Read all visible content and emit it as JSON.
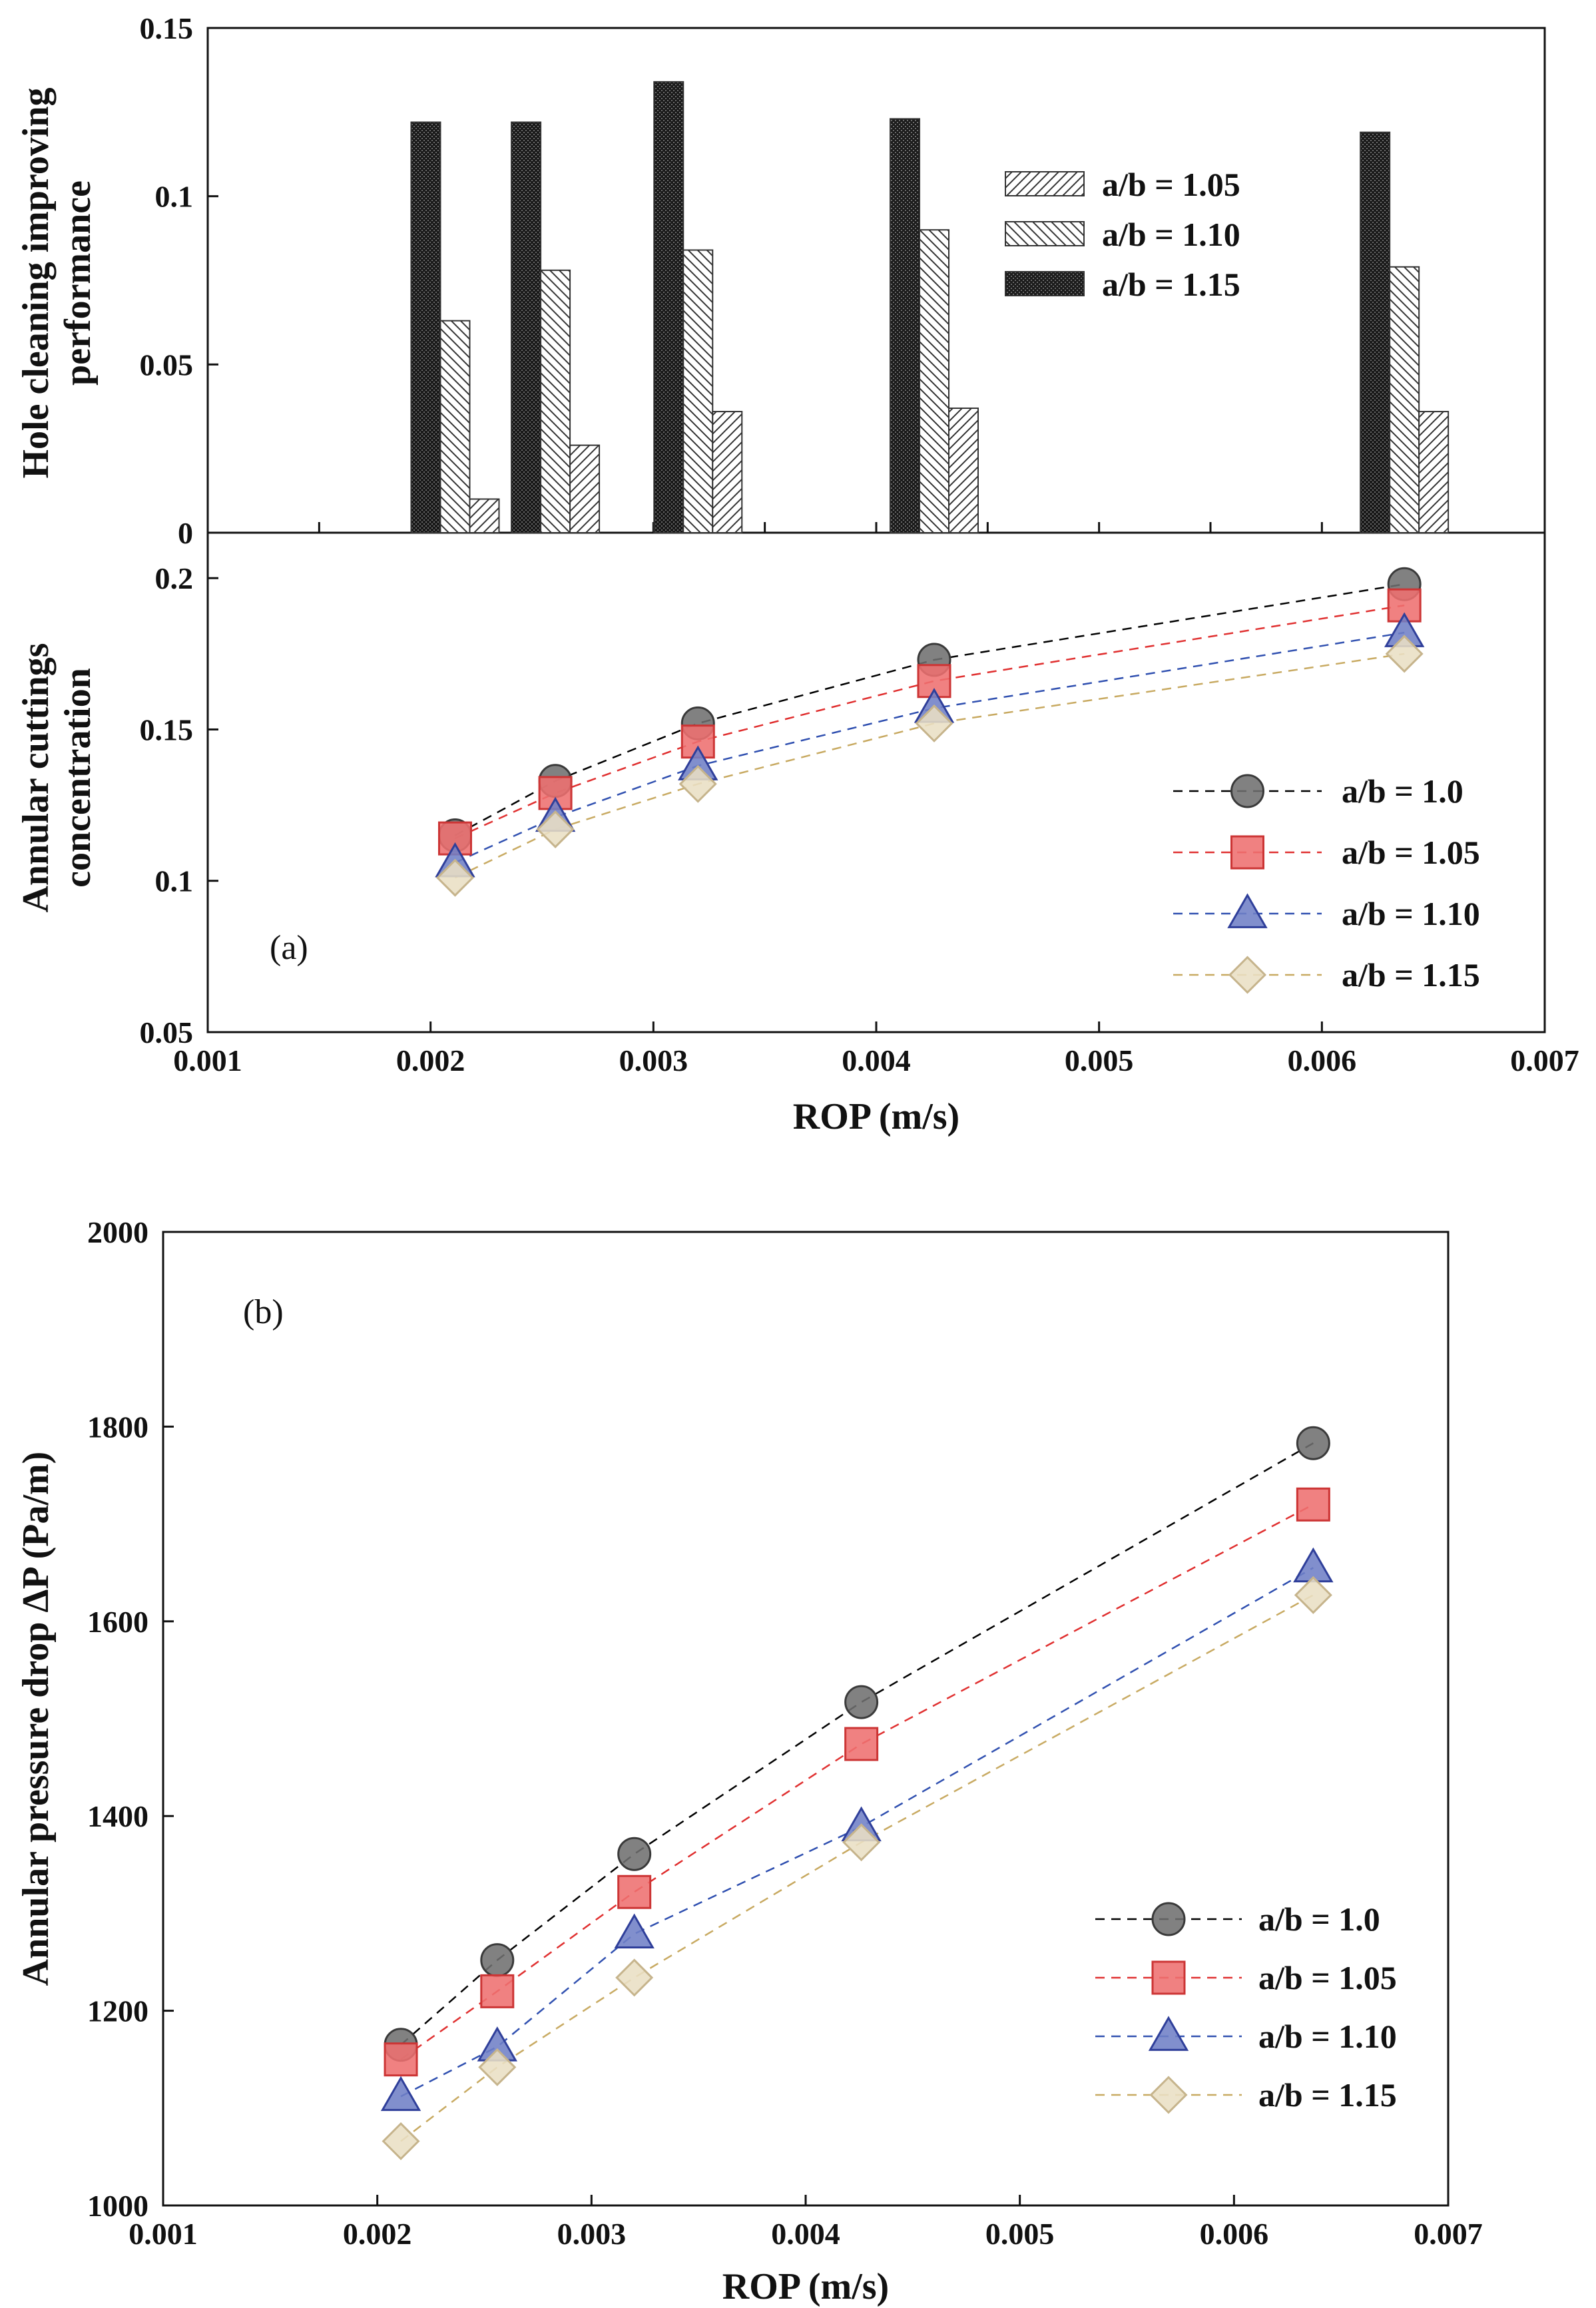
{
  "chart_data": [
    {
      "id": "bar",
      "type": "bar",
      "panel": "(a) top",
      "ylabel_line1": "Hole cleaning improving",
      "ylabel_line2": "performance",
      "ylim": [
        0,
        0.15
      ],
      "yticks": [
        "0",
        "0.05",
        "0.1",
        "0.15"
      ],
      "ytick_values": [
        0,
        0.05,
        0.1,
        0.15
      ],
      "x": [
        0.00211,
        0.00256,
        0.0032,
        0.00426,
        0.00637
      ],
      "series": [
        {
          "name": "a/b = 1.05",
          "pattern": "hatch-fwd",
          "values": [
            0.01,
            0.026,
            0.036,
            0.037,
            0.036
          ]
        },
        {
          "name": "a/b = 1.10",
          "pattern": "hatch-back",
          "values": [
            0.063,
            0.078,
            0.084,
            0.09,
            0.079
          ]
        },
        {
          "name": "a/b = 1.15",
          "pattern": "dark",
          "values": [
            0.122,
            0.122,
            0.134,
            0.123,
            0.119
          ]
        }
      ]
    },
    {
      "id": "conc",
      "type": "line",
      "panel": "(a) bottom",
      "label": "(a)",
      "ylabel_line1": "Annular cuttings",
      "ylabel_line2": "concentration",
      "xlabel": "ROP (m/s)",
      "xlim": [
        0.001,
        0.007
      ],
      "xticks": [
        "0.001",
        "0.002",
        "0.003",
        "0.004",
        "0.005",
        "0.006",
        "0.007"
      ],
      "xtick_values": [
        0.001,
        0.002,
        0.003,
        0.004,
        0.005,
        0.006,
        0.007
      ],
      "ylim": [
        0.05,
        0.215
      ],
      "yticks": [
        "0.05",
        "0.1",
        "0.15",
        "0.2"
      ],
      "ytick_values": [
        0.05,
        0.1,
        0.15,
        0.2
      ],
      "x": [
        0.00211,
        0.00256,
        0.0032,
        0.00426,
        0.00637
      ],
      "series": [
        {
          "name": "a/b = 1.0",
          "marker": "circle",
          "line_color": "#000000",
          "fill": "#707070",
          "stroke": "#3a3a3a",
          "values": [
            0.115,
            0.133,
            0.152,
            0.173,
            0.198
          ]
        },
        {
          "name": "a/b = 1.05",
          "marker": "square",
          "line_color": "#e03030",
          "fill": "#ee6f6f",
          "stroke": "#cc3535",
          "values": [
            0.114,
            0.129,
            0.146,
            0.166,
            0.191
          ]
        },
        {
          "name": "a/b = 1.10",
          "marker": "triangle",
          "line_color": "#3050b0",
          "fill": "#6f7fc6",
          "stroke": "#2f3f9a",
          "values": [
            0.106,
            0.121,
            0.138,
            0.157,
            0.182
          ]
        },
        {
          "name": "a/b = 1.15",
          "marker": "diamond",
          "line_color": "#c8aa62",
          "fill": "#e9dfc4",
          "stroke": "#c6b48c",
          "values": [
            0.101,
            0.117,
            0.132,
            0.152,
            0.175
          ]
        }
      ]
    },
    {
      "id": "dp",
      "type": "line",
      "panel": "(b)",
      "label": "(b)",
      "ylabel": "Annular pressure drop ΔP (Pa/m)",
      "xlabel": "ROP (m/s)",
      "xlim": [
        0.001,
        0.007
      ],
      "xticks": [
        "0.001",
        "0.002",
        "0.003",
        "0.004",
        "0.005",
        "0.006",
        "0.007"
      ],
      "xtick_values": [
        0.001,
        0.002,
        0.003,
        0.004,
        0.005,
        0.006,
        0.007
      ],
      "ylim": [
        1000,
        2000
      ],
      "yticks": [
        "1000",
        "1200",
        "1400",
        "1600",
        "1800",
        "2000"
      ],
      "ytick_values": [
        1000,
        1200,
        1400,
        1600,
        1800,
        2000
      ],
      "x": [
        0.00211,
        0.00256,
        0.0032,
        0.00426,
        0.00637
      ],
      "series": [
        {
          "name": "a/b = 1.0",
          "marker": "circle",
          "line_color": "#000000",
          "fill": "#707070",
          "stroke": "#3a3a3a",
          "values": [
            1165,
            1252,
            1361,
            1517,
            1783
          ]
        },
        {
          "name": "a/b = 1.05",
          "marker": "square",
          "line_color": "#e03030",
          "fill": "#ee6f6f",
          "stroke": "#cc3535",
          "values": [
            1150,
            1220,
            1322,
            1474,
            1720
          ]
        },
        {
          "name": "a/b = 1.10",
          "marker": "triangle",
          "line_color": "#3050b0",
          "fill": "#6f7fc6",
          "stroke": "#2f3f9a",
          "values": [
            1112,
            1163,
            1279,
            1389,
            1655
          ]
        },
        {
          "name": "a/b = 1.15",
          "marker": "diamond",
          "line_color": "#c8aa62",
          "fill": "#e9dfc4",
          "stroke": "#c6b48c",
          "values": [
            1066,
            1142,
            1234,
            1373,
            1627
          ]
        }
      ]
    }
  ]
}
